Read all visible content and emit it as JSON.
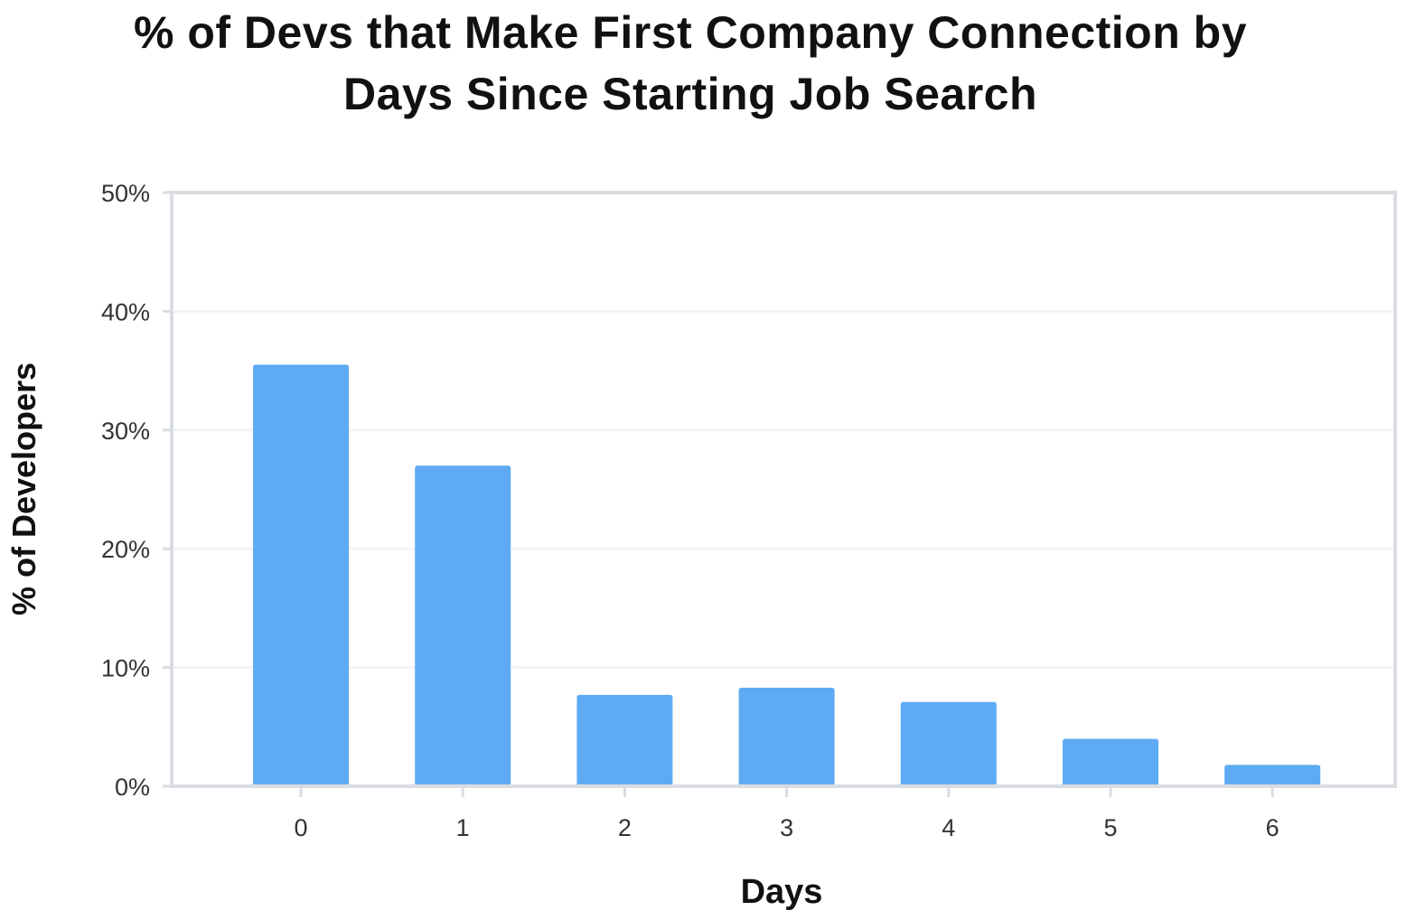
{
  "chart_data": {
    "type": "bar",
    "title_lines": [
      "% of Devs that Make First Company Connection by",
      "Days Since Starting Job Search"
    ],
    "xlabel": "Days",
    "ylabel": "% of Developers",
    "categories": [
      "0",
      "1",
      "2",
      "3",
      "4",
      "5",
      "6"
    ],
    "values": [
      35.5,
      27.0,
      7.7,
      8.3,
      7.1,
      4.0,
      1.8
    ],
    "value_unit": "%",
    "ylim": [
      0,
      50
    ],
    "yticks": [
      0,
      10,
      20,
      30,
      40,
      50
    ],
    "ytick_labels": [
      "0%",
      "10%",
      "20%",
      "30%",
      "40%",
      "50%"
    ],
    "grid": "horizontal",
    "legend": "none",
    "colors": {
      "bar": "#5EABF4",
      "axis": "#D9DDE2",
      "grid": "#F2F4F6"
    }
  }
}
